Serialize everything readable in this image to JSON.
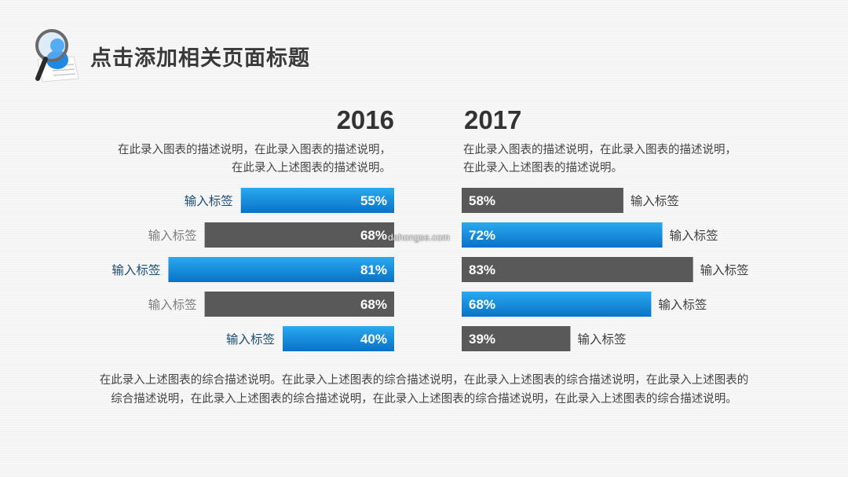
{
  "header": {
    "title": "点击添加相关页面标题",
    "icon": "magnifier-person-icon"
  },
  "left": {
    "year": "2016",
    "description_lines": [
      "在此录入图表的描述说明，在此录入图表的描述说明，",
      "在此录入上述图表的描述说明。"
    ]
  },
  "right": {
    "year": "2017",
    "description_lines": [
      "在此录入图表的描述说明，在此录入图表的描述说明，",
      "在此录入上述图表的描述说明。"
    ]
  },
  "summary": "在此录入上述图表的综合描述说明。在此录入上述图表的综合描述说明，在此录入上述图表的综合描述说明，在此录入上述图表的综合描述说明，在此录入上述图表的综合描述说明，在此录入上述图表的综合描述说明，在此录入上述图表的综合描述说明。",
  "watermark": "dahongse.com",
  "colors": {
    "blue_top": "#1fa4ee",
    "blue_bottom": "#0a74c7",
    "gray": "#595959",
    "blue_label": "#1f4e79",
    "gray_label": "#7f7f7f",
    "dark_label": "#404040"
  },
  "chart_data": [
    {
      "type": "bar",
      "orientation": "horizontal",
      "title": "2016",
      "categories": [
        "输入标签",
        "输入标签",
        "输入标签",
        "输入标签",
        "输入标签"
      ],
      "values": [
        55,
        68,
        81,
        68,
        40
      ],
      "value_labels": [
        "55%",
        "68%",
        "81%",
        "68%",
        "40%"
      ],
      "bar_colors": [
        "blue",
        "gray",
        "blue",
        "gray",
        "blue"
      ],
      "xlim": [
        0,
        100
      ]
    },
    {
      "type": "bar",
      "orientation": "horizontal",
      "title": "2017",
      "categories": [
        "输入标签",
        "输入标签",
        "输入标签",
        "输入标签",
        "输入标签"
      ],
      "values": [
        58,
        72,
        83,
        68,
        39
      ],
      "value_labels": [
        "58%",
        "72%",
        "83%",
        "68%",
        "39%"
      ],
      "bar_colors": [
        "gray",
        "blue",
        "gray",
        "blue",
        "gray"
      ],
      "xlim": [
        0,
        100
      ]
    }
  ]
}
